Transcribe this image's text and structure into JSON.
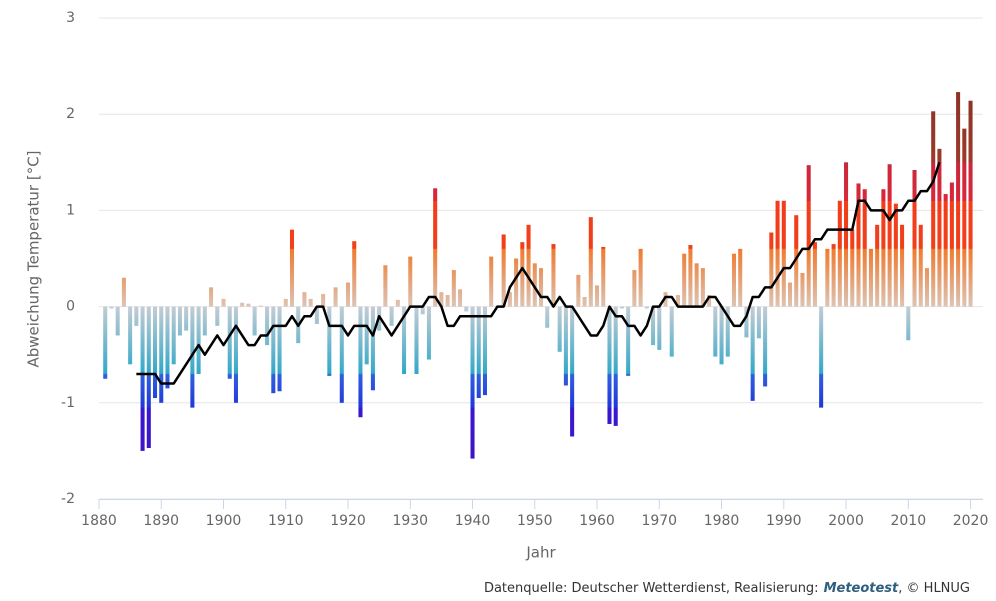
{
  "chart_data": {
    "type": "bar",
    "y_label": "Abweichung Temperatur [°C]",
    "x_label": "Jahr",
    "source": [
      "Datenquelle: Deutscher Wetterdienst, Realisierung:",
      "Meteotest",
      ", © HLNUG"
    ],
    "xlim": [
      1880,
      2022
    ],
    "xticks": [
      1880,
      1890,
      1900,
      1910,
      1920,
      1930,
      1940,
      1950,
      1960,
      1970,
      1980,
      1990,
      2000,
      2010,
      2020
    ],
    "ylim": [
      -2,
      3
    ],
    "yticks": [
      -2,
      -1,
      0,
      1,
      2,
      3
    ],
    "grid": true,
    "x": [
      1881,
      1882,
      1883,
      1884,
      1885,
      1886,
      1887,
      1888,
      1889,
      1890,
      1891,
      1892,
      1893,
      1894,
      1895,
      1896,
      1897,
      1898,
      1899,
      1900,
      1901,
      1902,
      1903,
      1904,
      1905,
      1906,
      1907,
      1908,
      1909,
      1910,
      1911,
      1912,
      1913,
      1914,
      1915,
      1916,
      1917,
      1918,
      1919,
      1920,
      1921,
      1922,
      1923,
      1924,
      1925,
      1926,
      1927,
      1928,
      1929,
      1930,
      1931,
      1932,
      1933,
      1934,
      1935,
      1936,
      1937,
      1938,
      1939,
      1940,
      1941,
      1942,
      1943,
      1944,
      1945,
      1946,
      1947,
      1948,
      1949,
      1950,
      1951,
      1952,
      1953,
      1954,
      1955,
      1956,
      1957,
      1958,
      1959,
      1960,
      1961,
      1962,
      1963,
      1964,
      1965,
      1966,
      1967,
      1968,
      1969,
      1970,
      1971,
      1972,
      1973,
      1974,
      1975,
      1976,
      1977,
      1978,
      1979,
      1980,
      1981,
      1982,
      1983,
      1984,
      1985,
      1986,
      1987,
      1988,
      1989,
      1990,
      1991,
      1992,
      1993,
      1994,
      1995,
      1996,
      1997,
      1998,
      1999,
      2000,
      2001,
      2002,
      2003,
      2004,
      2005,
      2006,
      2007,
      2008,
      2009,
      2010,
      2011,
      2012,
      2013,
      2014,
      2015,
      2016,
      2017,
      2018,
      2019,
      2020
    ],
    "series": [
      {
        "type": "bar",
        "values": [
          -0.75,
          -0.02,
          -0.3,
          0.3,
          -0.6,
          -0.2,
          -1.5,
          -1.47,
          -0.95,
          -1.0,
          -0.85,
          -0.6,
          -0.3,
          -0.25,
          -1.05,
          -0.7,
          -0.3,
          0.2,
          -0.2,
          0.08,
          -0.75,
          -1.0,
          0.04,
          0.03,
          -0.3,
          0.01,
          -0.4,
          -0.9,
          -0.88,
          0.08,
          0.8,
          -0.38,
          0.15,
          0.08,
          -0.18,
          0.13,
          -0.72,
          0.2,
          -1.0,
          0.25,
          0.68,
          -1.15,
          -0.6,
          -0.87,
          -0.25,
          0.43,
          -0.2,
          0.07,
          -0.7,
          0.52,
          -0.7,
          -0.08,
          -0.55,
          1.23,
          0.15,
          0.12,
          0.38,
          0.18,
          -0.05,
          -1.58,
          -0.95,
          -0.92,
          0.52,
          0.01,
          0.75,
          0.15,
          0.5,
          0.67,
          0.85,
          0.45,
          0.4,
          -0.22,
          0.65,
          -0.47,
          -0.82,
          -1.35,
          0.33,
          0.1,
          0.93,
          0.22,
          0.62,
          -1.22,
          -1.24,
          -0.02,
          -0.72,
          0.38,
          0.6,
          -0.02,
          -0.4,
          -0.45,
          0.15,
          -0.52,
          0.12,
          0.55,
          0.64,
          0.45,
          0.4,
          0.12,
          -0.52,
          -0.6,
          -0.52,
          0.55,
          0.6,
          -0.32,
          -0.98,
          -0.33,
          -0.83,
          0.77,
          1.1,
          1.1,
          0.25,
          0.95,
          0.35,
          1.47,
          0.67,
          -1.05,
          0.6,
          0.65,
          1.1,
          1.5,
          0.8,
          1.28,
          1.22,
          0.6,
          0.85,
          1.22,
          1.48,
          1.07,
          0.85,
          -0.35,
          1.42,
          0.85,
          0.4,
          2.03,
          1.64,
          1.17,
          1.29,
          2.23,
          1.85,
          2.14
        ]
      },
      {
        "type": "line",
        "color": "#000000",
        "values": [
          null,
          null,
          null,
          null,
          null,
          -0.7,
          -0.7,
          -0.7,
          -0.7,
          -0.8,
          -0.8,
          -0.8,
          -0.7,
          -0.6,
          -0.5,
          -0.4,
          -0.5,
          -0.4,
          -0.3,
          -0.4,
          -0.3,
          -0.2,
          -0.3,
          -0.4,
          -0.4,
          -0.3,
          -0.3,
          -0.2,
          -0.2,
          -0.2,
          -0.1,
          -0.2,
          -0.1,
          -0.1,
          0,
          0,
          -0.2,
          -0.2,
          -0.2,
          -0.3,
          -0.2,
          -0.2,
          -0.2,
          -0.3,
          -0.1,
          -0.2,
          -0.3,
          -0.2,
          -0.1,
          0,
          0,
          0,
          0.1,
          0.1,
          0,
          -0.2,
          -0.2,
          -0.1,
          -0.1,
          -0.1,
          -0.1,
          -0.1,
          -0.1,
          0,
          0,
          0.2,
          0.3,
          0.4,
          0.3,
          0.2,
          0.1,
          0.1,
          0,
          0.1,
          0,
          0,
          -0.1,
          -0.2,
          -0.3,
          -0.3,
          -0.2,
          0,
          -0.1,
          -0.1,
          -0.2,
          -0.2,
          -0.3,
          -0.2,
          0,
          0,
          0.1,
          0.1,
          0,
          0,
          0,
          0,
          0,
          0.1,
          0.1,
          0,
          -0.1,
          -0.2,
          -0.2,
          -0.1,
          0.1,
          0.1,
          0.2,
          0.2,
          0.3,
          0.4,
          0.4,
          0.5,
          0.6,
          0.6,
          0.7,
          0.7,
          0.8,
          0.8,
          0.8,
          0.8,
          0.8,
          1.1,
          1.1,
          1.0,
          1.0,
          1.0,
          0.9,
          1.0,
          1.0,
          1.1,
          1.1,
          1.2,
          1.2,
          1.3,
          1.5,
          null,
          null,
          null,
          null,
          null
        ]
      }
    ]
  }
}
